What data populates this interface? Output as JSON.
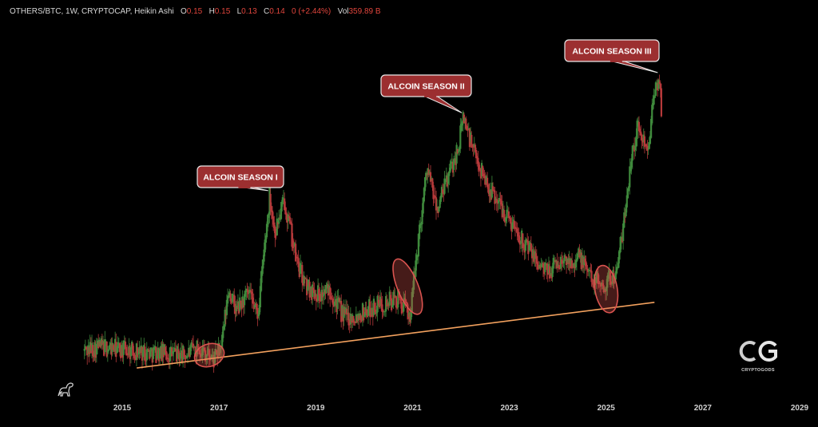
{
  "header": {
    "symbol": "OTHERS/BTC, 1W, CRYPTOCAP, Heikin Ashi",
    "o_label": "O",
    "o_value": "0.15",
    "h_label": "H",
    "h_value": "0.15",
    "l_label": "L",
    "l_value": "0.13",
    "c_label": "C",
    "c_value": "0.14",
    "change": "0 (+2.44%)",
    "vol_label": "Vol",
    "vol_value": "359.89 B"
  },
  "colors": {
    "background": "#000000",
    "up_candle": "#3f8a3c",
    "down_candle": "#b5393a",
    "trendline": "#f3a15e",
    "callout_fill": "#9c2f30",
    "highlight_ellipse": "#d9534f"
  },
  "logo": {
    "mark": "CG",
    "caption": "CRYPTOGODS"
  },
  "chart_data": {
    "type": "candlestick",
    "chart_style": "Heikin Ashi",
    "timeframe": "1W",
    "x_axis": {
      "ticks": [
        "2015",
        "2017",
        "2019",
        "2021",
        "2023",
        "2025",
        "2027",
        "2029"
      ],
      "range": [
        2014.1,
        2029.6
      ]
    },
    "y_axis": {
      "scale": "log",
      "labels_shown": false
    },
    "series_path": [
      [
        2014.2,
        0.26
      ],
      [
        2014.5,
        0.27
      ],
      [
        2014.9,
        0.265
      ],
      [
        2015.3,
        0.26
      ],
      [
        2015.8,
        0.255
      ],
      [
        2016.3,
        0.25
      ],
      [
        2016.6,
        0.27
      ],
      [
        2016.9,
        0.24
      ],
      [
        2017.05,
        0.27
      ],
      [
        2017.2,
        0.45
      ],
      [
        2017.35,
        0.37
      ],
      [
        2017.6,
        0.43
      ],
      [
        2017.8,
        0.36
      ],
      [
        2018.05,
        1.05
      ],
      [
        2018.15,
        0.74
      ],
      [
        2018.35,
        1.0
      ],
      [
        2018.6,
        0.58
      ],
      [
        2018.8,
        0.46
      ],
      [
        2019.1,
        0.43
      ],
      [
        2019.3,
        0.45
      ],
      [
        2019.55,
        0.36
      ],
      [
        2019.75,
        0.35
      ],
      [
        2020.0,
        0.37
      ],
      [
        2020.4,
        0.4
      ],
      [
        2020.7,
        0.41
      ],
      [
        2020.95,
        0.36
      ],
      [
        2021.1,
        0.65
      ],
      [
        2021.3,
        1.35
      ],
      [
        2021.5,
        0.9
      ],
      [
        2021.75,
        1.25
      ],
      [
        2021.95,
        1.6
      ],
      [
        2022.05,
        2.1
      ],
      [
        2022.3,
        1.45
      ],
      [
        2022.6,
        1.1
      ],
      [
        2022.9,
        0.9
      ],
      [
        2023.2,
        0.74
      ],
      [
        2023.5,
        0.6
      ],
      [
        2023.75,
        0.52
      ],
      [
        2023.95,
        0.56
      ],
      [
        2024.2,
        0.58
      ],
      [
        2024.45,
        0.6
      ],
      [
        2024.7,
        0.5
      ],
      [
        2024.95,
        0.47
      ],
      [
        2025.2,
        0.52
      ],
      [
        2025.35,
        0.75
      ],
      [
        2025.5,
        1.4
      ],
      [
        2025.65,
        1.9
      ],
      [
        2025.85,
        1.6
      ],
      [
        2026.0,
        2.5
      ],
      [
        2026.1,
        3.0
      ],
      [
        2026.15,
        2.1
      ]
    ],
    "trendline": {
      "from": [
        2015.3,
        0.223
      ],
      "to": [
        2026.0,
        0.4
      ]
    },
    "highlight_ellipses": [
      {
        "x": 2016.8,
        "y": 0.25
      },
      {
        "x": 2020.9,
        "y": 0.46
      },
      {
        "x": 2025.0,
        "y": 0.45
      }
    ],
    "annotations": [
      {
        "text": "ALCOIN SEASON I",
        "target": [
          2018.05,
          1.05
        ]
      },
      {
        "text": "ALCOIN SEASON II",
        "target": [
          2022.05,
          2.1
        ]
      },
      {
        "text": "ALCOIN SEASON III",
        "target": [
          2026.1,
          3.0
        ]
      }
    ]
  }
}
